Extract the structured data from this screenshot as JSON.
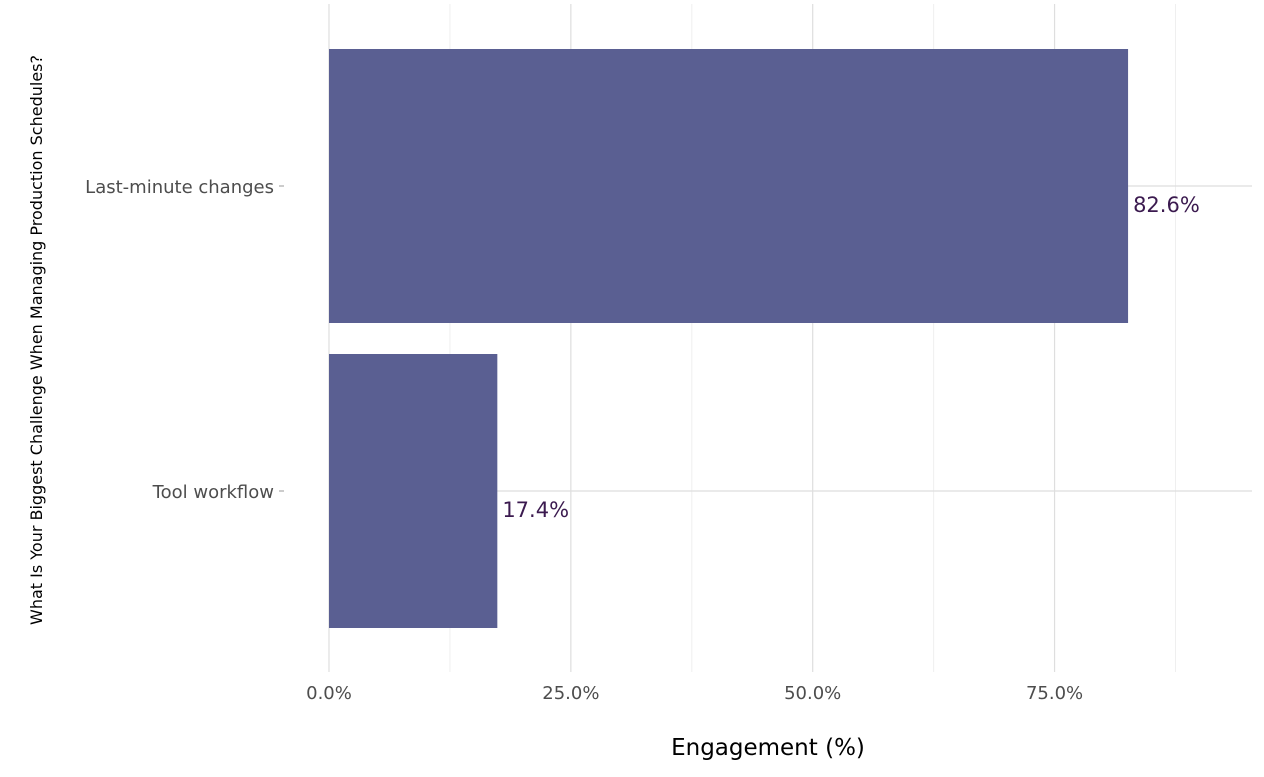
{
  "chart_data": {
    "type": "bar",
    "orientation": "horizontal",
    "categories": [
      "Last-minute changes",
      "Tool workflow"
    ],
    "values": [
      82.6,
      17.4
    ],
    "data_labels": [
      "82.6%",
      "17.4%"
    ],
    "xlabel": "Engagement (%)",
    "ylabel": "What Is Your Biggest Challenge When Managing Production Schedules?",
    "xlim": [
      0,
      95
    ],
    "x_ticks": [
      0,
      25,
      50,
      75
    ],
    "x_tick_labels": [
      "0.0%",
      "25.0%",
      "50.0%",
      "75.0%"
    ],
    "grid": true,
    "legend": "none"
  },
  "colors": {
    "bar": "#5a5f92",
    "data_label": "#3b1a4f",
    "grid_major": "#dedede",
    "grid_minor": "#efefef"
  }
}
